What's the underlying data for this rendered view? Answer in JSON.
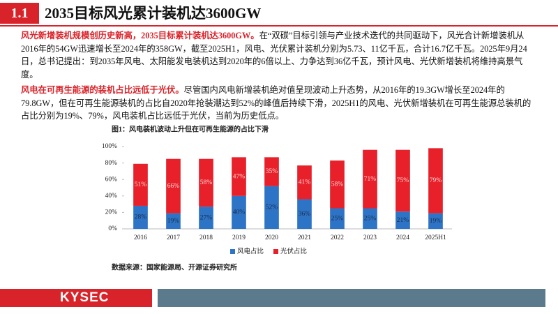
{
  "header": {
    "number": "1.1",
    "title": "2035目标风光累计装机达3600GW"
  },
  "paragraphs": [
    {
      "lead": "风光新增装机规模创历史新高，2035目标累计装机达3600GW。",
      "text": "在“双碳”目标引领与产业技术迭代的共同驱动下，风光合计新增装机从2016年的54GW迅速增长至2024年的358GW，截至2025H1，风电、光伏累计装机分别为5.73、11亿千瓦，合计16.7亿千瓦。2025年9月24日，总书记提出：到2035年风电、太阳能发电装机达到2020年的6倍以上、力争达到36亿千瓦，预计风电、光伏新增装机将维持高景气度。"
    },
    {
      "lead": "风电在可再生能源的装机占比远低于光伏。",
      "text": "尽管国内风电新增装机绝对值呈现波动上升态势，从2016年的19.3GW增长至2024年的79.8GW，但在可再生能源装机的占比自2020年抢装潮达到52%的峰值后持续下滑，2025H1的风电、光伏新增装机在可再生能源总装机的占比分别为19%、79%，风电装机占比远低于光伏，当前为历史低点。"
    }
  ],
  "chart_data": {
    "type": "stacked_bar",
    "title": "图1：风电装机波动上升但在可再生能源的占比下滑",
    "categories": [
      "2016",
      "2017",
      "2018",
      "2019",
      "2020",
      "2021",
      "2022",
      "2023",
      "2024",
      "2025H1"
    ],
    "series": [
      {
        "name": "风电占比",
        "color": "#2e74c6",
        "values": [
          28,
          19,
          27,
          40,
          52,
          36,
          25,
          25,
          21,
          19
        ],
        "value_labels": [
          "28%",
          "19%",
          "27%",
          "40%",
          "52%",
          "36%",
          "25%",
          "25%",
          "21%",
          "19%"
        ]
      },
      {
        "name": "光伏占比",
        "color": "#e8202a",
        "values": [
          51,
          66,
          58,
          47,
          35,
          41,
          58,
          71,
          75,
          79
        ],
        "value_labels": [
          "51%",
          "66%",
          "58%",
          "47%",
          "35%",
          "41%",
          "58%",
          "71%",
          "75%",
          "79%"
        ]
      }
    ],
    "ylim": [
      0,
      100
    ],
    "yticks": [
      {
        "value": 0,
        "label": "0%"
      },
      {
        "value": 20,
        "label": "20%"
      },
      {
        "value": 40,
        "label": "40%"
      },
      {
        "value": 60,
        "label": "60%"
      },
      {
        "value": 80,
        "label": "80%"
      },
      {
        "value": 100,
        "label": "100%"
      }
    ],
    "source": "数据来源：国家能源局、开源证券研究所"
  },
  "footer": {
    "logo": "KYSEC"
  }
}
